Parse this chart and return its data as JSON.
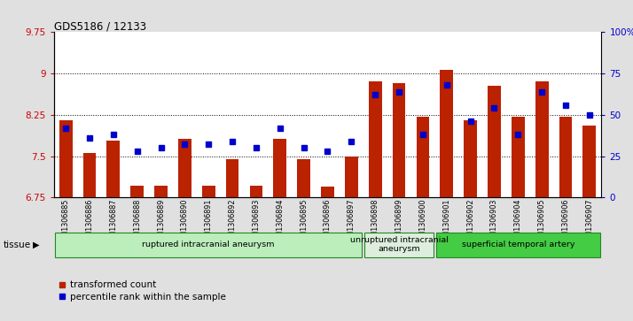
{
  "title": "GDS5186 / 12133",
  "samples": [
    "GSM1306885",
    "GSM1306886",
    "GSM1306887",
    "GSM1306888",
    "GSM1306889",
    "GSM1306890",
    "GSM1306891",
    "GSM1306892",
    "GSM1306893",
    "GSM1306894",
    "GSM1306895",
    "GSM1306896",
    "GSM1306897",
    "GSM1306898",
    "GSM1306899",
    "GSM1306900",
    "GSM1306901",
    "GSM1306902",
    "GSM1306903",
    "GSM1306904",
    "GSM1306905",
    "GSM1306906",
    "GSM1306907"
  ],
  "transformed_count": [
    8.15,
    7.55,
    7.78,
    6.97,
    6.97,
    7.82,
    6.97,
    7.45,
    6.97,
    7.82,
    7.45,
    6.95,
    7.5,
    8.85,
    8.82,
    8.22,
    9.07,
    8.15,
    8.77,
    8.22,
    8.85,
    8.22,
    8.05
  ],
  "percentile_rank": [
    42,
    36,
    38,
    28,
    30,
    32,
    32,
    34,
    30,
    42,
    30,
    28,
    34,
    62,
    64,
    38,
    68,
    46,
    54,
    38,
    64,
    56,
    50
  ],
  "ylim_left": [
    6.75,
    9.75
  ],
  "ylim_right": [
    0,
    100
  ],
  "yticks_left": [
    6.75,
    7.5,
    8.25,
    9.0,
    9.75
  ],
  "ytick_labels_left": [
    "6.75",
    "7.5",
    "8.25",
    "9",
    "9.75"
  ],
  "yticks_right": [
    0,
    25,
    50,
    75,
    100
  ],
  "ytick_labels_right": [
    "0",
    "25",
    "50",
    "75",
    "100%"
  ],
  "bar_color": "#bb2200",
  "dot_color": "#0000cc",
  "bar_bottom": 6.75,
  "background_color": "#e0e0e0",
  "plot_bg_color": "#ffffff",
  "tissue_label": "tissue",
  "group_ranges": [
    {
      "start": 0,
      "end": 12,
      "label": "ruptured intracranial aneurysm",
      "color": "#bbeebb"
    },
    {
      "start": 13,
      "end": 15,
      "label": "unruptured intracranial\naneurysm",
      "color": "#ddeedd"
    },
    {
      "start": 16,
      "end": 22,
      "label": "superficial temporal artery",
      "color": "#44cc44"
    }
  ],
  "legend_items": [
    {
      "label": "transformed count",
      "color": "#bb2200"
    },
    {
      "label": "percentile rank within the sample",
      "color": "#0000cc"
    }
  ]
}
